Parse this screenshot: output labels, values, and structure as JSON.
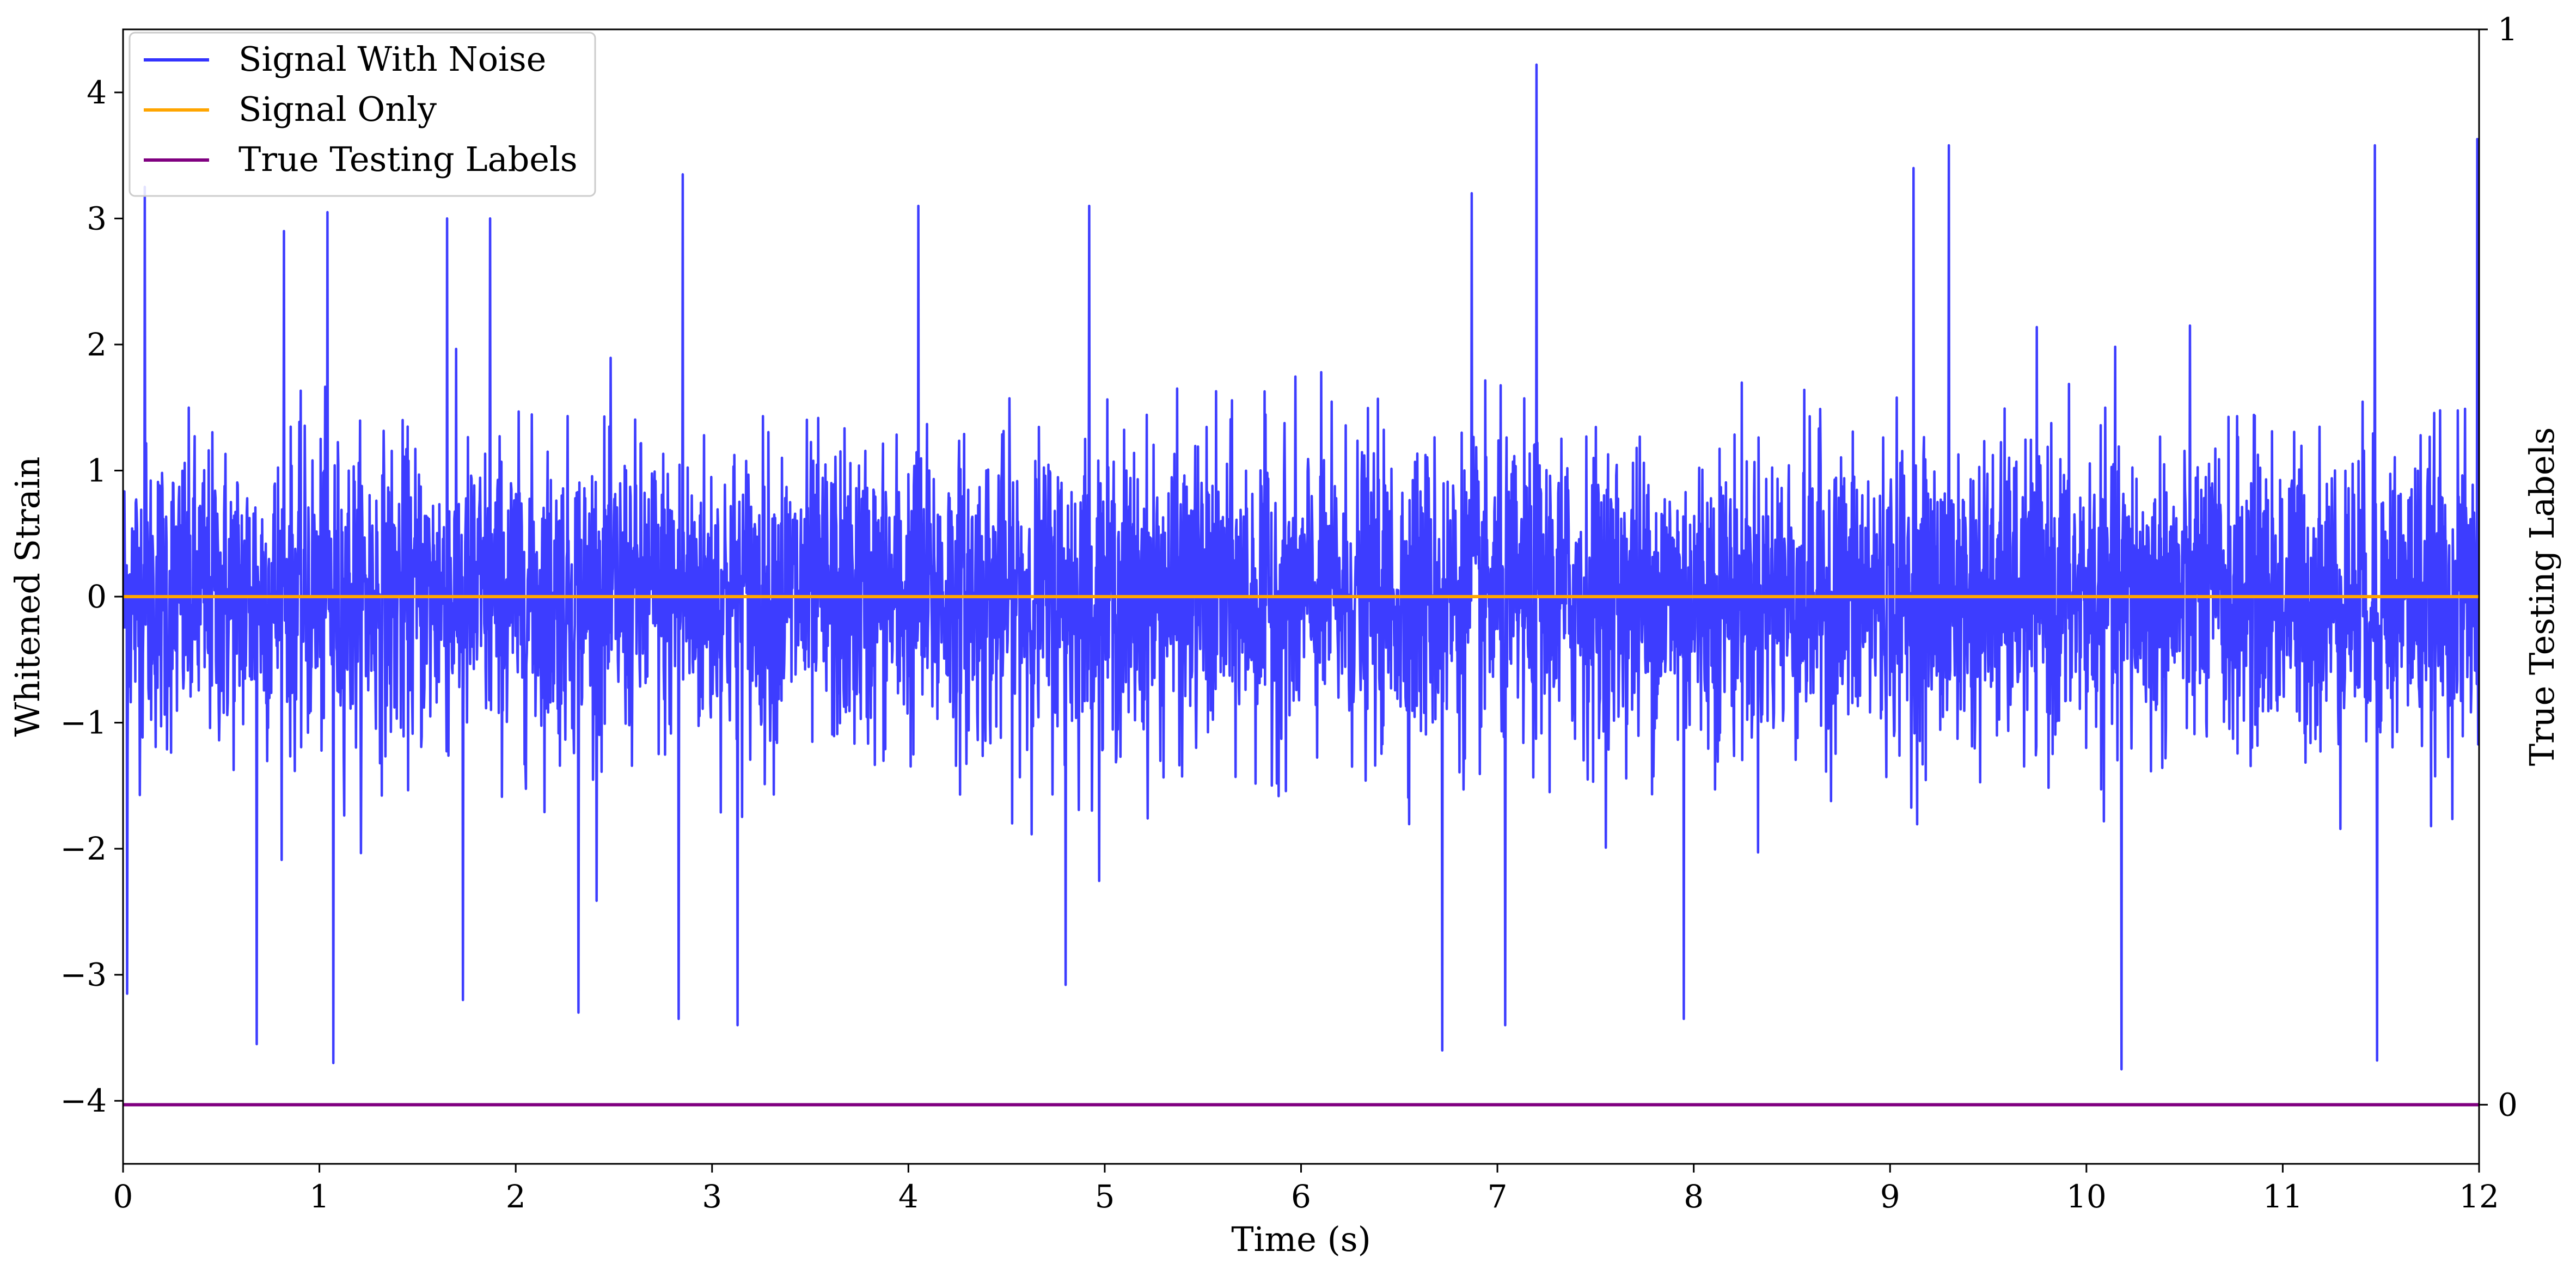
{
  "chart_data": {
    "type": "line",
    "title": "",
    "xlabel": "Time (s)",
    "ylabel": "Whitened Strain",
    "y2label": "True Testing Labels",
    "xlim": [
      0,
      12
    ],
    "ylim": [
      -4.5,
      4.5
    ],
    "y2lim": [
      -0.055,
      1.0
    ],
    "xticks": [
      "0",
      "1",
      "2",
      "3",
      "4",
      "5",
      "6",
      "7",
      "8",
      "9",
      "10",
      "11",
      "12"
    ],
    "yticks": [
      "−4",
      "−3",
      "−2",
      "−1",
      "0",
      "1",
      "2",
      "3",
      "4"
    ],
    "y2ticks": [
      "0",
      "1"
    ],
    "grid": false,
    "legend_position": "top-left",
    "series": [
      {
        "name": "Signal With Noise",
        "color": "#3333ff",
        "axis": "left",
        "description": "dense noise band",
        "approx_std": 0.6,
        "peaks": [
          {
            "x": 0.11,
            "y": 3.25
          },
          {
            "x": 0.82,
            "y": 2.9
          },
          {
            "x": 1.04,
            "y": 3.05
          },
          {
            "x": 1.65,
            "y": 3.0
          },
          {
            "x": 1.87,
            "y": 3.0
          },
          {
            "x": 2.85,
            "y": 3.35
          },
          {
            "x": 4.05,
            "y": 3.1
          },
          {
            "x": 4.92,
            "y": 3.1
          },
          {
            "x": 6.87,
            "y": 3.2
          },
          {
            "x": 7.2,
            "y": 4.22
          },
          {
            "x": 9.12,
            "y": 3.4
          },
          {
            "x": 9.3,
            "y": 3.58
          },
          {
            "x": 11.47,
            "y": 3.58
          },
          {
            "x": 11.99,
            "y": 3.63
          }
        ],
        "troughs": [
          {
            "x": 0.02,
            "y": -3.15
          },
          {
            "x": 0.68,
            "y": -3.55
          },
          {
            "x": 1.07,
            "y": -3.7
          },
          {
            "x": 1.73,
            "y": -3.2
          },
          {
            "x": 2.32,
            "y": -3.3
          },
          {
            "x": 2.83,
            "y": -3.35
          },
          {
            "x": 3.13,
            "y": -3.4
          },
          {
            "x": 4.8,
            "y": -3.08
          },
          {
            "x": 6.72,
            "y": -3.6
          },
          {
            "x": 7.04,
            "y": -3.4
          },
          {
            "x": 7.95,
            "y": -3.35
          },
          {
            "x": 10.18,
            "y": -3.75
          },
          {
            "x": 11.48,
            "y": -3.68
          }
        ]
      },
      {
        "name": "Signal Only",
        "color": "#ffa500",
        "axis": "left",
        "x": [
          0,
          12
        ],
        "y": [
          0,
          0
        ]
      },
      {
        "name": "True Testing Labels",
        "color": "#800080",
        "axis": "right",
        "x": [
          0,
          12
        ],
        "y": [
          0,
          0
        ]
      }
    ]
  }
}
